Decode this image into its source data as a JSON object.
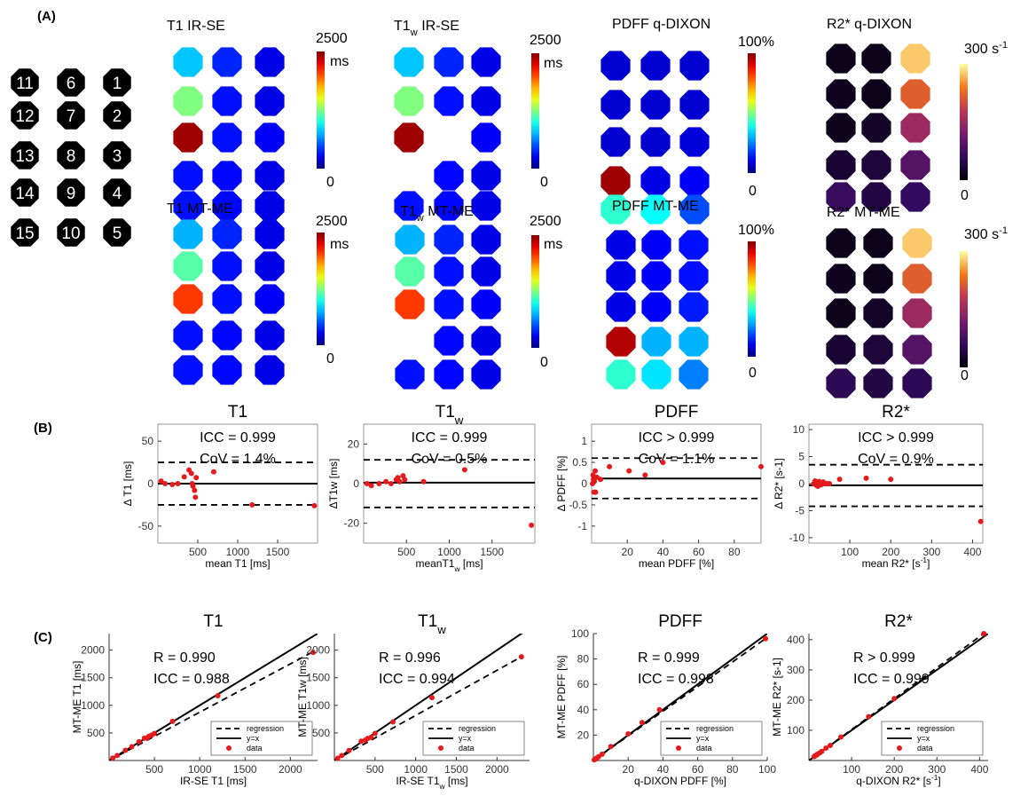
{
  "panel_labels": {
    "A": "(A)",
    "B": "(B)",
    "C": "(C)"
  },
  "phantom_layout": {
    "rows": [
      [
        "11",
        "6",
        "1"
      ],
      [
        "12",
        "7",
        "2"
      ],
      [
        "13",
        "8",
        "3"
      ],
      [
        "14",
        "9",
        "4"
      ],
      [
        "15",
        "10",
        "5"
      ]
    ]
  },
  "maps": [
    {
      "title": "T1 IR-SE",
      "cbar_max": "2500",
      "cbar_unit": "ms",
      "cbar_min": "0",
      "cmap": "jet",
      "values": [
        [
          0.32,
          0.16,
          0.1
        ],
        [
          0.5,
          0.14,
          0.1
        ],
        [
          0.97,
          0.14,
          0.12
        ],
        [
          0.14,
          0.13,
          0.1
        ],
        [
          0.14,
          0.13,
          0.1
        ]
      ]
    },
    {
      "title": "T1",
      "title_sub": "w",
      "title_rest": " IR-SE",
      "cbar_max": "2500",
      "cbar_unit": "ms",
      "cbar_min": "0",
      "cmap": "jet",
      "values": [
        [
          0.32,
          0.16,
          0.1
        ],
        [
          0.5,
          0.14,
          0.1
        ],
        [
          0.97,
          null,
          0.12
        ],
        [
          null,
          0.13,
          0.1
        ],
        [
          0.14,
          0.13,
          0.1
        ]
      ]
    },
    {
      "title": "PDFF q-DIXON",
      "cbar_max": "100%",
      "cbar_unit": "",
      "cbar_min": "0",
      "cmap": "jet",
      "values": [
        [
          0.08,
          0.08,
          0.08
        ],
        [
          0.08,
          0.08,
          0.08
        ],
        [
          0.08,
          0.08,
          0.09
        ],
        [
          0.97,
          0.1,
          0.12
        ],
        [
          0.42,
          0.38,
          0.2
        ]
      ]
    },
    {
      "title": "R2* q-DIXON",
      "cbar_max": "300 s",
      "cbar_sup": "-1",
      "cbar_min": "0",
      "cmap": "inferno",
      "values": [
        [
          0.05,
          0.05,
          0.92
        ],
        [
          0.06,
          0.05,
          0.72
        ],
        [
          0.05,
          0.08,
          0.5
        ],
        [
          0.1,
          0.12,
          0.3
        ],
        [
          0.22,
          0.14,
          0.2
        ]
      ]
    },
    {
      "title": "T1 MT-ME",
      "cbar_max": "2500",
      "cbar_unit": "ms",
      "cbar_min": "0",
      "cmap": "jet",
      "values": [
        [
          0.3,
          0.16,
          0.1
        ],
        [
          0.46,
          0.14,
          0.1
        ],
        [
          0.82,
          0.14,
          0.12
        ],
        [
          0.14,
          0.13,
          0.1
        ],
        [
          0.14,
          0.13,
          0.1
        ]
      ]
    },
    {
      "title": "T1",
      "title_sub": "w",
      "title_rest": " MT-ME",
      "cbar_max": "2500",
      "cbar_unit": "ms",
      "cbar_min": "0",
      "cmap": "jet",
      "values": [
        [
          0.3,
          0.16,
          0.1
        ],
        [
          0.46,
          0.14,
          0.1
        ],
        [
          0.82,
          0.14,
          0.12
        ],
        [
          null,
          0.13,
          0.1
        ],
        [
          0.14,
          0.13,
          0.1
        ]
      ]
    },
    {
      "title": "PDFF MT-ME",
      "cbar_max": "100%",
      "cbar_unit": "",
      "cbar_min": "0",
      "cmap": "jet",
      "values": [
        [
          0.1,
          0.12,
          0.14
        ],
        [
          0.1,
          0.12,
          0.14
        ],
        [
          0.1,
          0.12,
          0.15
        ],
        [
          0.95,
          0.3,
          0.3
        ],
        [
          0.42,
          0.35,
          0.25
        ]
      ]
    },
    {
      "title": "R2* MT-ME",
      "cbar_max": "300 s",
      "cbar_sup": "-1",
      "cbar_min": "0",
      "cmap": "inferno",
      "values": [
        [
          0.05,
          0.05,
          0.92
        ],
        [
          0.06,
          0.05,
          0.72
        ],
        [
          0.05,
          0.08,
          0.5
        ],
        [
          0.1,
          0.12,
          0.3
        ],
        [
          0.18,
          0.14,
          0.18
        ]
      ]
    }
  ],
  "chart_data": [
    {
      "type": "scatter",
      "panel": "B",
      "title": "T1",
      "title_sub": "",
      "xlabel": "mean T1 [ms]",
      "ylabel": "Δ T1 [ms]",
      "xlim": [
        0,
        2000
      ],
      "ylim": [
        -70,
        70
      ],
      "xticks": [
        500,
        1000,
        1500
      ],
      "yticks": [
        -50,
        0,
        50
      ],
      "ann1": "ICC = 0.999",
      "ann2": "CoV = 1.4%",
      "mean_line": 0,
      "loa": [
        25,
        -25
      ],
      "points": [
        [
          40,
          3
        ],
        [
          90,
          0
        ],
        [
          180,
          -1
        ],
        [
          250,
          0
        ],
        [
          330,
          8
        ],
        [
          390,
          16
        ],
        [
          420,
          12
        ],
        [
          430,
          0
        ],
        [
          440,
          -3
        ],
        [
          460,
          -8
        ],
        [
          470,
          -16
        ],
        [
          480,
          7
        ],
        [
          700,
          14
        ],
        [
          1180,
          -25
        ],
        [
          1960,
          -26
        ]
      ]
    },
    {
      "type": "scatter",
      "panel": "B",
      "title": "T1",
      "title_sub": "w",
      "xlabel": "meanT1",
      "xlabel_sub": "w",
      "xlabel_rest": " [ms]",
      "ylabel": "ΔT1w [ms]",
      "xlim": [
        0,
        2000
      ],
      "ylim": [
        -30,
        30
      ],
      "xticks": [
        500,
        1000,
        1500
      ],
      "yticks": [
        -20,
        0,
        20
      ],
      "ann1": "ICC = 0.999",
      "ann2": "CoV = 0.5%",
      "mean_line": 0.5,
      "loa": [
        12,
        -12
      ],
      "points": [
        [
          40,
          0
        ],
        [
          90,
          -1
        ],
        [
          180,
          0
        ],
        [
          260,
          1
        ],
        [
          320,
          0
        ],
        [
          380,
          2
        ],
        [
          400,
          3
        ],
        [
          420,
          1
        ],
        [
          460,
          4
        ],
        [
          480,
          2
        ],
        [
          700,
          1
        ],
        [
          1180,
          7
        ],
        [
          1960,
          -21
        ]
      ]
    },
    {
      "type": "scatter",
      "panel": "B",
      "title": "PDFF",
      "title_sub": "",
      "xlabel": "mean PDFF [%]",
      "ylabel": "Δ PDFF [%]",
      "xlim": [
        0,
        95
      ],
      "ylim": [
        -1.4,
        1.4
      ],
      "xticks": [
        20,
        40,
        60,
        80
      ],
      "yticks": [
        -1,
        -0.5,
        0,
        0.5,
        1
      ],
      "ann1": "ICC > 0.999",
      "ann2": "CoV = 1.1%",
      "mean_line": 0.12,
      "loa": [
        0.6,
        -0.35
      ],
      "points": [
        [
          0.5,
          0
        ],
        [
          0.8,
          0.2
        ],
        [
          1,
          0.1
        ],
        [
          1.3,
          -0.2
        ],
        [
          1.5,
          0.05
        ],
        [
          2,
          0.3
        ],
        [
          2.2,
          -0.2
        ],
        [
          3,
          0.15
        ],
        [
          5,
          0.1
        ],
        [
          10,
          0.4
        ],
        [
          21,
          0.3
        ],
        [
          30,
          0.2
        ],
        [
          40,
          0.5
        ],
        [
          95,
          0.4
        ]
      ]
    },
    {
      "type": "scatter",
      "panel": "B",
      "title": "R2*",
      "title_sub": "",
      "xlabel": "mean R2* [s",
      "xlabel_sup": "-1",
      "xlabel_rest": "]",
      "ylabel": "Δ R2* [s-1]",
      "xlim": [
        0,
        425
      ],
      "ylim": [
        -11,
        11
      ],
      "xticks": [
        100,
        200,
        300,
        400
      ],
      "yticks": [
        -10,
        -5,
        0,
        5,
        10
      ],
      "ann1": "ICC > 0.999",
      "ann2": "CoV = 0.9%",
      "mean_line": -0.3,
      "loa": [
        3.5,
        -4.2
      ],
      "points": [
        [
          12,
          0
        ],
        [
          15,
          0.5
        ],
        [
          18,
          -0.3
        ],
        [
          20,
          0.3
        ],
        [
          22,
          -0.5
        ],
        [
          25,
          0.4
        ],
        [
          28,
          0
        ],
        [
          30,
          -0.2
        ],
        [
          35,
          0.3
        ],
        [
          40,
          0
        ],
        [
          45,
          0
        ],
        [
          50,
          0
        ],
        [
          75,
          0.8
        ],
        [
          140,
          1
        ],
        [
          200,
          0.8
        ],
        [
          420,
          -7
        ]
      ]
    },
    {
      "type": "scatter",
      "panel": "C",
      "title": "T1",
      "title_sub": "",
      "xlabel": "IR-SE  T1 [ms]",
      "ylabel": "MT-ME  T1 [ms]",
      "xlim": [
        0,
        2300
      ],
      "ylim": [
        0,
        2300
      ],
      "xticks": [
        500,
        1000,
        1500,
        2000
      ],
      "yticks": [
        500,
        1000,
        1500,
        2000
      ],
      "ann1": "R = 0.990",
      "ann2": "ICC = 0.988",
      "reg_end": [
        2250,
        1970
      ],
      "legend": [
        "regression",
        "y=x",
        "data"
      ],
      "points": [
        [
          40,
          45
        ],
        [
          90,
          90
        ],
        [
          180,
          185
        ],
        [
          250,
          250
        ],
        [
          330,
          340
        ],
        [
          390,
          405
        ],
        [
          420,
          410
        ],
        [
          440,
          440
        ],
        [
          470,
          460
        ],
        [
          500,
          490
        ],
        [
          700,
          710
        ],
        [
          1200,
          1175
        ],
        [
          2250,
          1960
        ]
      ]
    },
    {
      "type": "scatter",
      "panel": "C",
      "title": "T1",
      "title_sub": "w",
      "xlabel": "IR-SE T1",
      "xlabel_sub": "w",
      "xlabel_rest": " [ms]",
      "ylabel": "MT-ME T1w [ms]",
      "xlim": [
        0,
        2400
      ],
      "ylim": [
        0,
        2300
      ],
      "xticks": [
        500,
        1000,
        1500,
        2000
      ],
      "yticks": [
        500,
        1000,
        1500,
        2000
      ],
      "ann1": "R = 0.996",
      "ann2": "ICC = 0.994",
      "reg_end": [
        2300,
        1880
      ],
      "legend": [
        "regression",
        "y=x",
        "data"
      ],
      "points": [
        [
          40,
          40
        ],
        [
          90,
          90
        ],
        [
          180,
          180
        ],
        [
          330,
          350
        ],
        [
          380,
          370
        ],
        [
          410,
          400
        ],
        [
          450,
          420
        ],
        [
          500,
          490
        ],
        [
          720,
          700
        ],
        [
          1200,
          1140
        ],
        [
          2300,
          1880
        ]
      ]
    },
    {
      "type": "scatter",
      "panel": "C",
      "title": "PDFF",
      "title_sub": "",
      "xlabel": "q-DIXON  PDFF [%]",
      "ylabel": "MT-ME  PDFF [%]",
      "xlim": [
        0,
        100
      ],
      "ylim": [
        0,
        100
      ],
      "xticks": [
        20,
        40,
        60,
        80,
        100
      ],
      "yticks": [
        20,
        40,
        60,
        80,
        100
      ],
      "ann1": "R = 0.999",
      "ann2": "ICC = 0.998",
      "reg_end": [
        100,
        97
      ],
      "legend": [
        "regression",
        "y=x",
        "data"
      ],
      "points": [
        [
          0.5,
          0.5
        ],
        [
          1,
          1
        ],
        [
          1.5,
          1.5
        ],
        [
          2,
          2
        ],
        [
          3,
          3
        ],
        [
          5,
          5
        ],
        [
          10,
          11
        ],
        [
          20,
          21
        ],
        [
          28,
          30
        ],
        [
          38,
          40
        ],
        [
          99,
          96
        ]
      ]
    },
    {
      "type": "scatter",
      "panel": "C",
      "title": "R2*",
      "title_sub": "",
      "xlabel": "q-DIXON  R2* [s",
      "xlabel_sup": "-1",
      "xlabel_rest": "]",
      "ylabel": "MT-ME  R2* [s-1]",
      "xlim": [
        0,
        420
      ],
      "ylim": [
        0,
        420
      ],
      "xticks": [
        100,
        200,
        300,
        400
      ],
      "yticks": [
        100,
        200,
        300,
        400
      ],
      "ann1": "R > 0.999",
      "ann2": "ICC = 0.999",
      "reg_end": [
        410,
        420
      ],
      "legend": [
        "regression",
        "y=x",
        "data"
      ],
      "points": [
        [
          12,
          13
        ],
        [
          15,
          16
        ],
        [
          18,
          18
        ],
        [
          20,
          21
        ],
        [
          25,
          25
        ],
        [
          30,
          30
        ],
        [
          40,
          41
        ],
        [
          50,
          50
        ],
        [
          75,
          78
        ],
        [
          140,
          145
        ],
        [
          200,
          205
        ],
        [
          410,
          420
        ]
      ]
    }
  ]
}
